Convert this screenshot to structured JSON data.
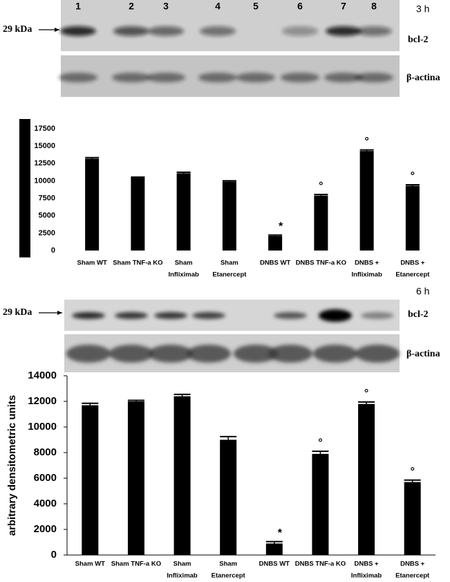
{
  "blots": [
    {
      "time": "3 h",
      "lanes": [
        "1",
        "2",
        "3",
        "4",
        "5",
        "6",
        "7",
        "8"
      ],
      "marker": "29 kDa",
      "bands": [
        "bcl-2",
        "β-actina"
      ]
    },
    {
      "time": "6 h",
      "marker": "29 kDa",
      "bands": [
        "bcl-2",
        "β-actina"
      ]
    }
  ],
  "chart_data": [
    {
      "type": "bar",
      "categories": [
        [
          "Sham WT"
        ],
        [
          "Sham TNF-a KO"
        ],
        [
          "Sham",
          "Infliximab"
        ],
        [
          "Sham",
          "Etanercept"
        ],
        [
          "DNBS WT"
        ],
        [
          "DNBS TNF-a KO"
        ],
        [
          "DNBS +",
          "Infliximab"
        ],
        [
          "DNBS +",
          "Etanercept"
        ]
      ],
      "values": [
        13200,
        10500,
        11100,
        9900,
        2100,
        7900,
        14300,
        9300
      ],
      "errors": [
        150,
        50,
        150,
        120,
        120,
        150,
        150,
        150
      ],
      "markers": [
        null,
        null,
        null,
        null,
        "*",
        "°",
        "°",
        "°"
      ],
      "color": "#000000",
      "ylim": [
        0,
        17500
      ],
      "yticks": [
        0,
        2500,
        5000,
        7500,
        10000,
        12500,
        15000,
        17500
      ]
    },
    {
      "type": "bar",
      "y_label": "arbitrary densitometric units",
      "categories": [
        [
          "Sham WT"
        ],
        [
          "Sham TNF-a KO"
        ],
        [
          "Sham",
          "Infliximab"
        ],
        [
          "Sham",
          "Etanercept"
        ],
        [
          "DNBS WT"
        ],
        [
          "DNBS TNF-a KO"
        ],
        [
          "DNBS +",
          "Infliximab"
        ],
        [
          "DNBS +",
          "Etanercept"
        ]
      ],
      "values": [
        11700,
        12000,
        12400,
        9000,
        900,
        7900,
        11800,
        5700
      ],
      "errors": [
        150,
        80,
        150,
        250,
        150,
        200,
        150,
        150
      ],
      "markers": [
        null,
        null,
        null,
        null,
        "*",
        "°",
        "°",
        "°"
      ],
      "color": "#000000",
      "ylim": [
        0,
        14000
      ],
      "yticks": [
        0,
        2000,
        4000,
        6000,
        8000,
        10000,
        12000,
        14000
      ]
    }
  ]
}
